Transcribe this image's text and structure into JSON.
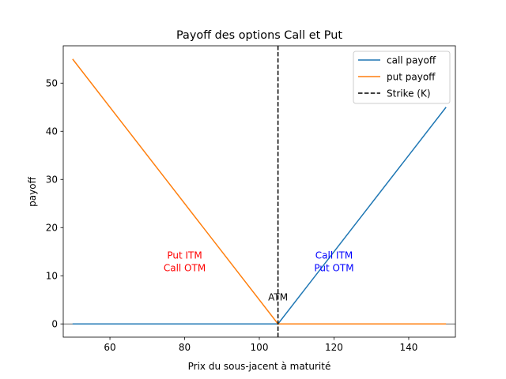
{
  "chart_data": {
    "type": "line",
    "title": "Payoff des options Call et Put",
    "xlabel": "Prix du sous-jacent à maturité",
    "ylabel": "payoff",
    "xlim": [
      47.5,
      152.5
    ],
    "ylim": [
      -2.75,
      57.75
    ],
    "xticks": [
      60,
      80,
      100,
      120,
      140
    ],
    "yticks": [
      0,
      10,
      20,
      30,
      40,
      50
    ],
    "strike": 105,
    "grid": false,
    "legend_position": "upper right",
    "series": [
      {
        "name": "call payoff",
        "color": "#1f77b4",
        "x": [
          50,
          105,
          150
        ],
        "y": [
          0,
          0,
          45
        ]
      },
      {
        "name": "put payoff",
        "color": "#ff7f0e",
        "x": [
          50,
          105,
          150
        ],
        "y": [
          55,
          0,
          0
        ]
      }
    ],
    "strike_line": {
      "name": "Strike (K)",
      "color": "#000000",
      "x": 105
    },
    "annotations": [
      {
        "lines": [
          "Put ITM",
          "Call OTM"
        ],
        "x": 80,
        "y": 11.6,
        "color": "#ff0000"
      },
      {
        "lines": [
          "Call ITM",
          "Put OTM"
        ],
        "x": 120,
        "y": 11.6,
        "color": "#0000ff"
      },
      {
        "lines": [
          "ATM"
        ],
        "x": 105,
        "y": 5.5,
        "color": "#000000"
      }
    ]
  }
}
